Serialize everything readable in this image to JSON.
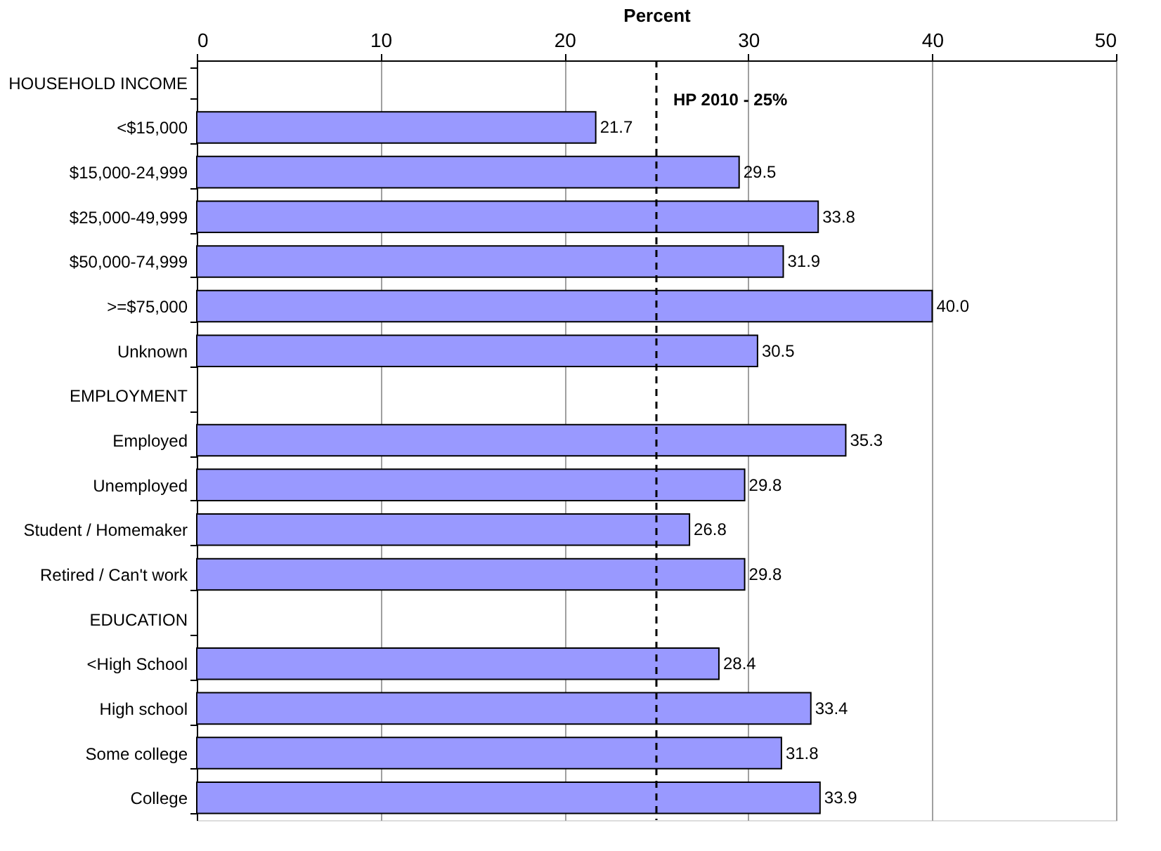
{
  "chart_data": {
    "type": "bar",
    "orientation": "horizontal",
    "xlabel": "Percent",
    "categories": [
      "HOUSEHOLD INCOME",
      "<$15,000",
      "$15,000-24,999",
      "$25,000-49,999",
      "$50,000-74,999",
      ">=$75,000",
      "Unknown",
      "EMPLOYMENT",
      "Employed",
      "Unemployed",
      "Student / Homemaker",
      "Retired / Can't work",
      "EDUCATION",
      "<High School",
      "High school",
      "Some college",
      "College"
    ],
    "series": [
      {
        "color": "#9999ff",
        "values": [
          null,
          21.7,
          29.5,
          33.8,
          31.9,
          40.0,
          30.5,
          null,
          35.3,
          29.8,
          26.8,
          29.8,
          null,
          28.4,
          33.4,
          31.8,
          33.9
        ],
        "value_labels": [
          null,
          "21.7",
          "29.5",
          "33.8",
          "31.9",
          "40.0",
          "30.5",
          null,
          "35.3",
          "29.8",
          "26.8",
          "29.8",
          null,
          "28.4",
          "33.4",
          "31.8",
          "33.9"
        ]
      }
    ],
    "xlim": [
      0,
      50
    ],
    "xticks": [
      0,
      10,
      20,
      30,
      40,
      50
    ],
    "grid": "x",
    "ref_lines": [
      {
        "axis": "x",
        "value": 25,
        "label": "HP 2010 - 25%",
        "line_style": "dashed",
        "color": "#000000"
      }
    ]
  }
}
